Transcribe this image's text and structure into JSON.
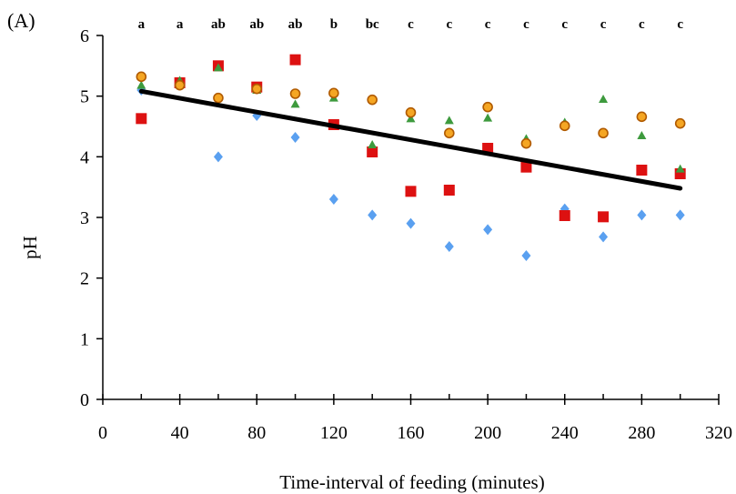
{
  "chart_data": {
    "type": "scatter",
    "panel_label": "(A)",
    "xlabel": "Time-interval of feeding (minutes)",
    "ylabel": "pH",
    "xlim": [
      0,
      320
    ],
    "ylim": [
      0,
      6
    ],
    "xticks": [
      0,
      40,
      80,
      120,
      160,
      200,
      240,
      280,
      320
    ],
    "yticks": [
      0,
      1,
      2,
      3,
      4,
      5,
      6
    ],
    "grid": false,
    "x": [
      20,
      40,
      60,
      80,
      100,
      120,
      140,
      160,
      180,
      200,
      220,
      240,
      260,
      280,
      300
    ],
    "significance_letters": [
      "a",
      "a",
      "ab",
      "ab",
      "ab",
      "b",
      "bc",
      "c",
      "c",
      "c",
      "c",
      "c",
      "c",
      "c",
      "c"
    ],
    "series": [
      {
        "marker": "diamond",
        "color": "#5aa0f0",
        "values": [
          5.1,
          5.2,
          4.0,
          4.68,
          4.32,
          3.3,
          3.04,
          2.9,
          2.52,
          2.8,
          2.37,
          3.14,
          2.68,
          3.04,
          3.04
        ]
      },
      {
        "marker": "square",
        "color": "#dd1111",
        "values": [
          4.63,
          5.22,
          5.5,
          5.15,
          5.6,
          4.53,
          4.08,
          3.43,
          3.45,
          4.14,
          3.83,
          3.03,
          3.01,
          3.78,
          3.72
        ]
      },
      {
        "marker": "triangle",
        "color": "#3d9a3d",
        "values": [
          5.18,
          5.26,
          5.47,
          5.1,
          4.87,
          4.97,
          4.2,
          4.63,
          4.6,
          4.64,
          4.3,
          4.57,
          4.95,
          4.35,
          3.8
        ]
      },
      {
        "marker": "circle",
        "color": "#f5a623",
        "stroke": "#b05a00",
        "values": [
          5.32,
          5.18,
          4.97,
          5.12,
          5.04,
          5.05,
          4.94,
          4.73,
          4.39,
          4.82,
          4.22,
          4.51,
          4.39,
          4.66,
          4.55
        ]
      }
    ],
    "trendline": {
      "x": [
        20,
        300
      ],
      "values": [
        5.08,
        3.48
      ],
      "color": "#000000"
    },
    "tick_marks_between": true
  }
}
